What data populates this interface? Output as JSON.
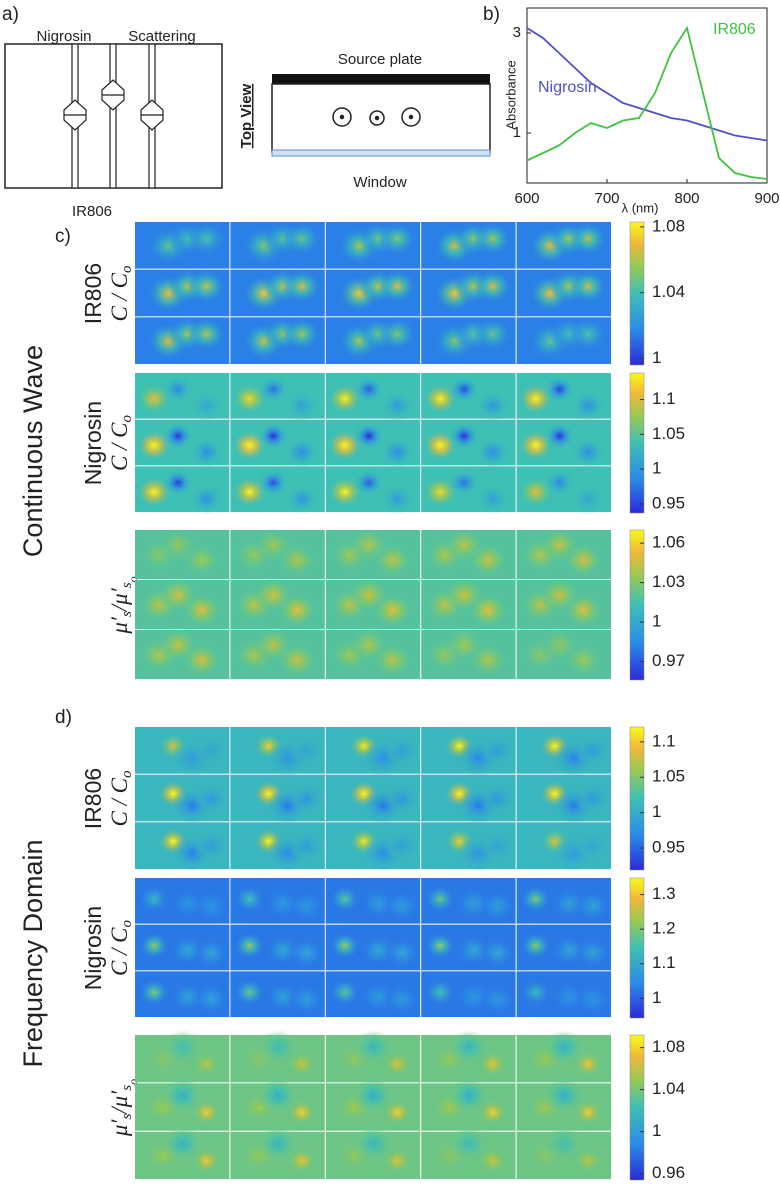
{
  "panel_a": {
    "label": "a)",
    "rod_labels": [
      "Nigrosin",
      "Scattering"
    ],
    "bottom_label": "IR806",
    "view_label": "Top View",
    "source_label": "Source plate",
    "window_label": "Window"
  },
  "chart_data": {
    "type": "line",
    "label": "b)",
    "xlabel": "λ (nm)",
    "ylabel": "Absorbance",
    "x": [
      600,
      620,
      640,
      660,
      680,
      700,
      720,
      740,
      760,
      780,
      800,
      820,
      840,
      860,
      880,
      900
    ],
    "xlim": [
      600,
      900
    ],
    "xticks": [
      600,
      700,
      800,
      900
    ],
    "ylim": [
      0,
      3.5
    ],
    "yticks": [
      1,
      3
    ],
    "series": [
      {
        "name": "Nigrosin",
        "color": "#5050cc",
        "values": [
          3.1,
          2.9,
          2.6,
          2.3,
          2.0,
          1.8,
          1.6,
          1.5,
          1.4,
          1.3,
          1.25,
          1.15,
          1.05,
          0.95,
          0.9,
          0.85
        ]
      },
      {
        "name": "IR806",
        "color": "#3ec43e",
        "values": [
          0.45,
          0.6,
          0.75,
          1.0,
          1.2,
          1.1,
          1.25,
          1.3,
          1.8,
          2.6,
          3.1,
          1.8,
          0.5,
          0.2,
          0.12,
          0.08
        ]
      }
    ]
  },
  "panel_c": {
    "label": "c)",
    "section": "Continuous Wave",
    "groups": [
      {
        "substance": "IR806",
        "quantity": [
          {
            "text": "C / C",
            "level": 0
          },
          {
            "text": "o",
            "level": 1
          }
        ],
        "clim": [
          0.996,
          1.083
        ],
        "cticks": [
          1.08,
          1.04,
          1
        ]
      },
      {
        "substance": "Nigrosin",
        "quantity": [
          {
            "text": "C / C",
            "level": 0
          },
          {
            "text": "o",
            "level": 1
          }
        ],
        "clim": [
          0.937,
          1.138
        ],
        "cticks": [
          1.1,
          1.05,
          1,
          0.95
        ]
      },
      {
        "quantity": [
          {
            "text": "μ′",
            "level": 0
          },
          {
            "text": "s",
            "level": 1
          },
          {
            "text": "/μ′",
            "level": 0
          },
          {
            "text": "s",
            "level": 1
          },
          {
            "text": "o",
            "level": 2
          }
        ],
        "clim": [
          0.956,
          1.07
        ],
        "cticks": [
          1.06,
          1.03,
          1,
          0.97
        ]
      }
    ]
  },
  "panel_d": {
    "label": "d)",
    "section": "Frequency Domain",
    "groups": [
      {
        "substance": "IR806",
        "quantity": [
          {
            "text": "C / C",
            "level": 0
          },
          {
            "text": "o",
            "level": 1
          }
        ],
        "clim": [
          0.919,
          1.121
        ],
        "cticks": [
          1.1,
          1.05,
          1,
          0.95
        ]
      },
      {
        "substance": "Nigrosin",
        "quantity": [
          {
            "text": "C / C",
            "level": 0
          },
          {
            "text": "o",
            "level": 1
          }
        ],
        "clim": [
          0.943,
          1.348
        ],
        "cticks": [
          1.3,
          1.2,
          1.1,
          1
        ]
      },
      {
        "quantity": [
          {
            "text": "μ′",
            "level": 0
          },
          {
            "text": "s",
            "level": 1
          },
          {
            "text": "/μ′",
            "level": 0
          },
          {
            "text": "s",
            "level": 1
          },
          {
            "text": "o",
            "level": 2
          }
        ],
        "clim": [
          0.954,
          1.092
        ],
        "cticks": [
          1.08,
          1.04,
          1,
          0.96
        ]
      }
    ]
  }
}
